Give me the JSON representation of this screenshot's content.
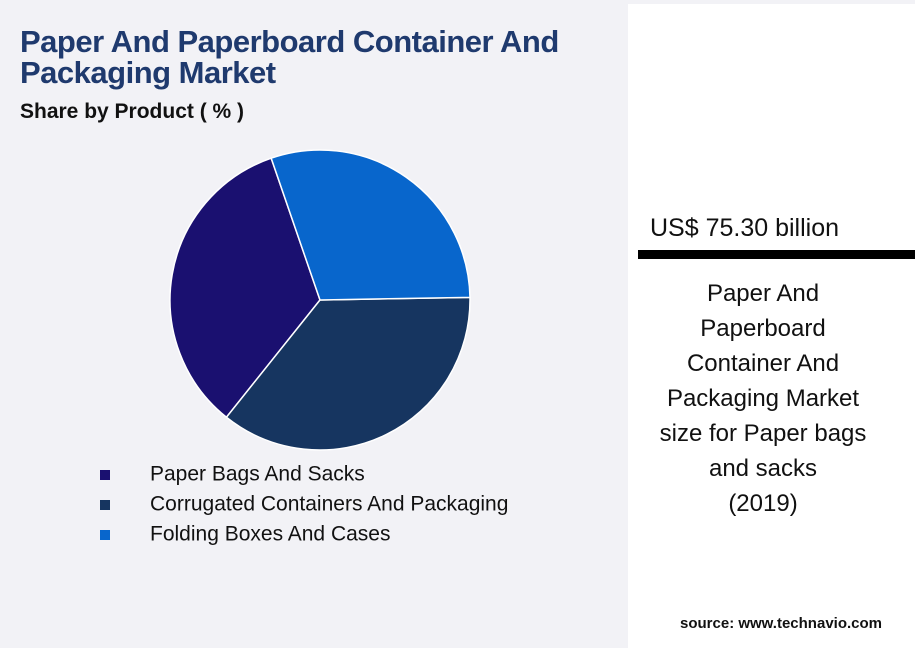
{
  "chart_data": {
    "type": "pie",
    "title": "Paper And Paperboard Container And Packaging Market",
    "subtitle": "Share by Product ( % )",
    "categories": [
      "Paper Bags And Sacks",
      "Corrugated Containers And Packaging",
      "Folding Boxes And Cases"
    ],
    "values": [
      34,
      36,
      30
    ],
    "colors": [
      "#1a1070",
      "#163560",
      "#0866cc"
    ]
  },
  "callout": {
    "value": "US$ 75.30 billion",
    "description": [
      "Paper And",
      "Paperboard",
      "Container And",
      "Packaging Market",
      "size for Paper bags",
      "and sacks",
      "(2019)"
    ]
  },
  "source": "source: www.technavio.com"
}
